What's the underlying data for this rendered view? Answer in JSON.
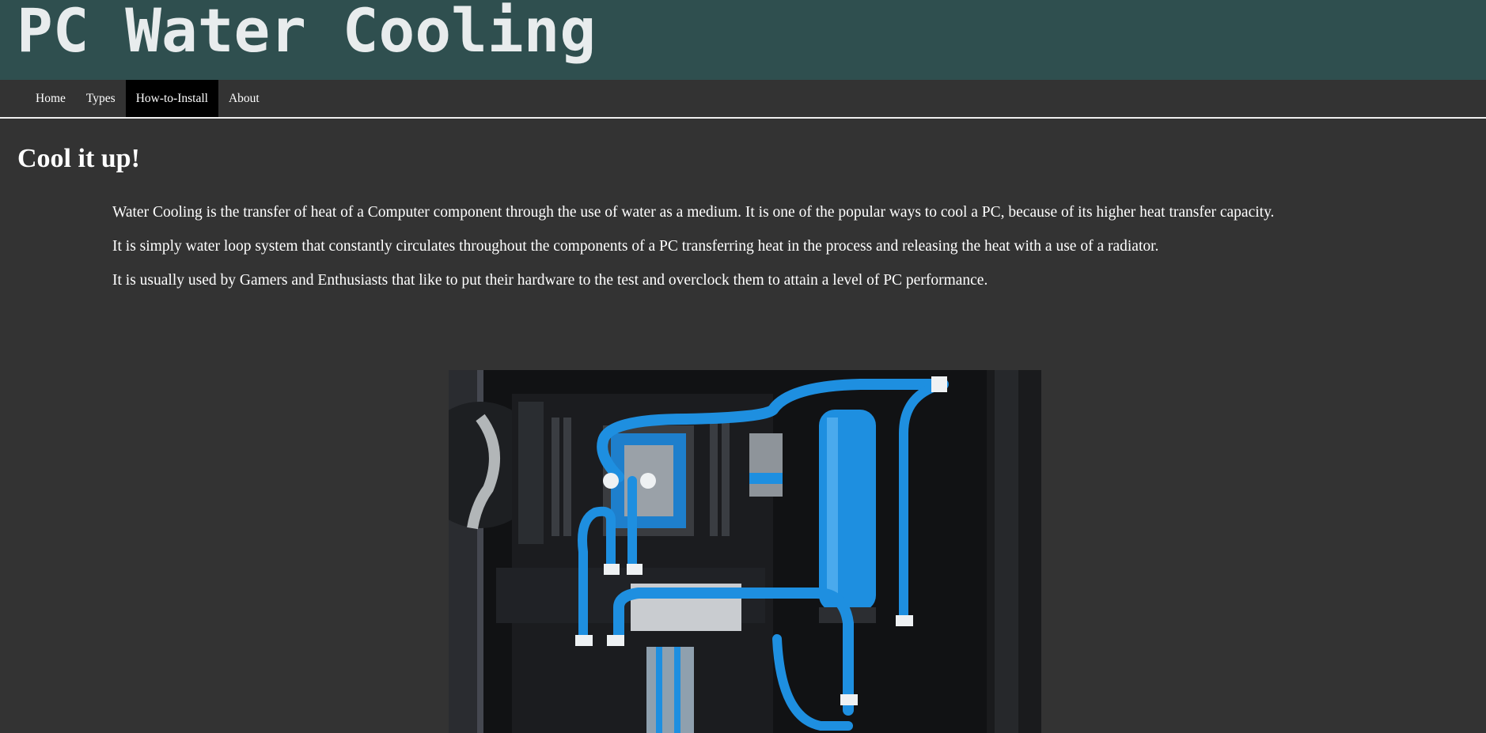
{
  "header": {
    "title": "PC Water Cooling"
  },
  "nav": {
    "items": [
      {
        "label": "Home"
      },
      {
        "label": "Types"
      },
      {
        "label": "How-to-Install"
      },
      {
        "label": "About"
      }
    ]
  },
  "main": {
    "heading": "Cool it up!",
    "paragraphs": [
      "Water Cooling is the transfer of heat of a Computer component through the use of water as a medium. It is one of the popular ways to cool a PC, because of its higher heat transfer capacity.",
      "It is simply water loop system that constantly circulates throughout the components of a PC transferring heat in the process and releasing the heat with a use of a radiator.",
      "It is usually used by Gamers and Enthusiasts that like to put their hardware to the test and overclock them to attain a level of PC performance."
    ]
  },
  "colors": {
    "header_bg": "#2f4f4f",
    "page_bg": "#333333",
    "nav_active_bg": "#000000",
    "text": "#ffffff",
    "tube_blue": "#1e8fe0"
  }
}
